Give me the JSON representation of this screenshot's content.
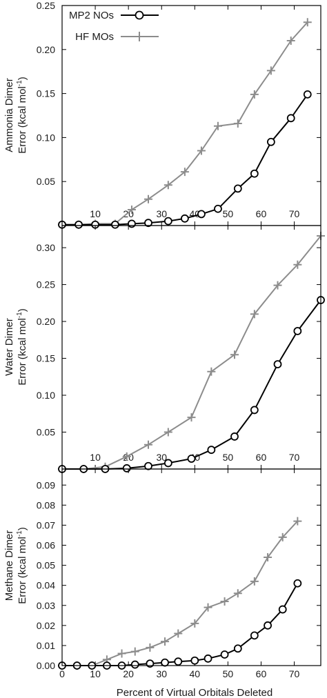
{
  "chart_data": [
    {
      "type": "line",
      "ylabel_line1": "Ammonia Dimer",
      "ylabel_line2": "Error (kcal mol",
      "ylabel_sup": "-1",
      "ylabel_close": ")",
      "xlim": [
        0,
        78
      ],
      "ylim": [
        0,
        0.25
      ],
      "yticks": [
        "0.05",
        "0.10",
        "0.15",
        "0.20",
        "0.25"
      ],
      "xticks": [
        "10",
        "20",
        "30",
        "40",
        "50",
        "60",
        "70"
      ],
      "legend": {
        "position": "top-left",
        "entries": [
          "MP2 NOs",
          "HF MOs"
        ]
      },
      "series": [
        {
          "name": "MP2 NOs",
          "color": "#000000",
          "marker": "circle",
          "x": [
            0,
            5,
            10,
            16,
            21,
            26,
            32,
            37,
            42,
            47,
            53,
            58,
            63,
            69,
            74
          ],
          "y": [
            0.001,
            0.001,
            0.001,
            0.001,
            0.002,
            0.003,
            0.005,
            0.008,
            0.013,
            0.019,
            0.042,
            0.059,
            0.095,
            0.122,
            0.149
          ]
        },
        {
          "name": "HF MOs",
          "color": "#8c8c8c",
          "marker": "plus",
          "x": [
            0,
            5,
            10,
            16,
            21,
            26,
            32,
            37,
            42,
            47,
            53,
            58,
            63,
            69,
            74
          ],
          "y": [
            0.001,
            0.001,
            0.002,
            0.002,
            0.018,
            0.03,
            0.046,
            0.061,
            0.085,
            0.113,
            0.116,
            0.149,
            0.176,
            0.21,
            0.231
          ]
        }
      ]
    },
    {
      "type": "line",
      "ylabel_line1": "Water Dimer",
      "ylabel_line2": "Error (kcal mol",
      "ylabel_sup": "-1",
      "ylabel_close": ")",
      "xlim": [
        0,
        78
      ],
      "ylim": [
        0,
        0.33
      ],
      "yticks": [
        "0.05",
        "0.10",
        "0.15",
        "0.20",
        "0.25",
        "0.30"
      ],
      "xticks": [
        "10",
        "20",
        "30",
        "40",
        "50",
        "60",
        "70"
      ],
      "series": [
        {
          "name": "MP2 NOs",
          "color": "#000000",
          "marker": "circle",
          "x": [
            0,
            6.5,
            13,
            19.5,
            26,
            32,
            39,
            45,
            52,
            58,
            65,
            71,
            78
          ],
          "y": [
            0.0,
            0.0,
            0.0,
            0.001,
            0.004,
            0.008,
            0.014,
            0.026,
            0.044,
            0.08,
            0.142,
            0.187,
            0.229
          ]
        },
        {
          "name": "HF MOs",
          "color": "#8c8c8c",
          "marker": "plus",
          "x": [
            0,
            6.5,
            13,
            19.5,
            26,
            32,
            39,
            45,
            52,
            58,
            65,
            71,
            78
          ],
          "y": [
            0.0,
            0.0,
            0.003,
            0.017,
            0.033,
            0.05,
            0.07,
            0.132,
            0.155,
            0.21,
            0.249,
            0.277,
            0.316
          ]
        }
      ]
    },
    {
      "type": "line",
      "ylabel_line1": "Methane Dimer",
      "ylabel_line2": "Error (kcal mol",
      "ylabel_sup": "-1",
      "ylabel_close": ")",
      "xlabel": "Percent of Virtual Orbitals Deleted",
      "xlim": [
        0,
        78
      ],
      "ylim": [
        0,
        0.098
      ],
      "yticks": [
        "0.00",
        "0.01",
        "0.02",
        "0.03",
        "0.04",
        "0.05",
        "0.06",
        "0.07",
        "0.08",
        "0.09"
      ],
      "xticks": [
        "0",
        "10",
        "20",
        "30",
        "40",
        "50",
        "60",
        "70"
      ],
      "series": [
        {
          "name": "MP2 NOs",
          "color": "#000000",
          "marker": "circle",
          "x": [
            0,
            4.5,
            9,
            13.5,
            18,
            22,
            26.5,
            31,
            35,
            40,
            44,
            49,
            53,
            58,
            62,
            66.5,
            71
          ],
          "y": [
            0.0,
            0.0,
            0.0,
            0.0,
            0.0,
            0.0005,
            0.001,
            0.0015,
            0.002,
            0.0025,
            0.0035,
            0.0055,
            0.0085,
            0.015,
            0.02,
            0.028,
            0.041
          ]
        },
        {
          "name": "HF MOs",
          "color": "#8c8c8c",
          "marker": "plus",
          "x": [
            0,
            4.5,
            9,
            13.5,
            18,
            22,
            26.5,
            31,
            35,
            40,
            44,
            49,
            53,
            58,
            62,
            66.5,
            71
          ],
          "y": [
            0.0,
            0.0,
            0.0,
            0.003,
            0.006,
            0.007,
            0.009,
            0.012,
            0.016,
            0.021,
            0.029,
            0.032,
            0.036,
            0.042,
            0.054,
            0.064,
            0.072
          ]
        }
      ]
    }
  ]
}
